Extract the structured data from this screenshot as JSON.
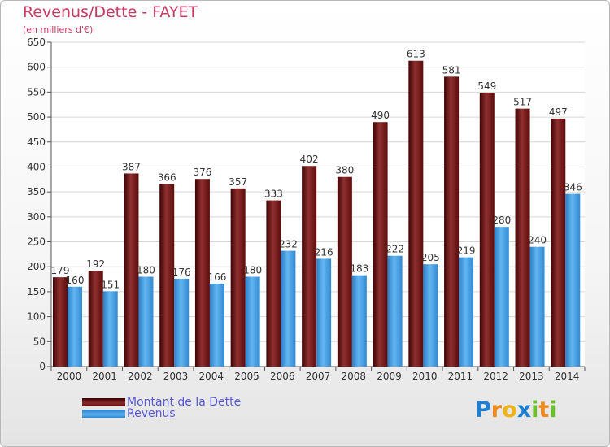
{
  "header": {
    "title": "Revenus/Dette - FAYET",
    "subtitle": "(en milliers d'€)"
  },
  "legend": {
    "debt_label": "Montant de la Dette",
    "revenue_label": "Revenus"
  },
  "logo": {
    "text": "Proxiti",
    "letters": [
      {
        "ch": "P",
        "color": "#1f7fd1"
      },
      {
        "ch": "r",
        "color": "#f08a1c"
      },
      {
        "ch": "o",
        "color": "#f0b21c"
      },
      {
        "ch": "x",
        "color": "#1f7fd1"
      },
      {
        "ch": "i",
        "color": "#6cbf2a"
      },
      {
        "ch": "t",
        "color": "#f08a1c"
      },
      {
        "ch": "i",
        "color": "#6cbf2a"
      }
    ]
  },
  "colors": {
    "title": "#c8385f",
    "debt_bar": "#7a1c1c",
    "revenue_bar": "#3d9be0",
    "legend_text": "#5858e0"
  },
  "chart_data": {
    "type": "bar",
    "title": "Revenus/Dette - FAYET",
    "subtitle": "(en milliers d'€)",
    "categories": [
      "2000",
      "2001",
      "2002",
      "2003",
      "2004",
      "2005",
      "2006",
      "2007",
      "2008",
      "2009",
      "2010",
      "2011",
      "2012",
      "2013",
      "2014"
    ],
    "series": [
      {
        "name": "Montant de la Dette",
        "values": [
          179,
          192,
          387,
          366,
          376,
          357,
          333,
          402,
          380,
          490,
          613,
          581,
          549,
          517,
          497
        ]
      },
      {
        "name": "Revenus",
        "values": [
          160,
          151,
          180,
          176,
          166,
          180,
          232,
          216,
          183,
          222,
          205,
          219,
          280,
          240,
          346
        ]
      }
    ],
    "ylim": [
      0,
      650
    ],
    "yticks": [
      0,
      50,
      100,
      150,
      200,
      250,
      300,
      350,
      400,
      450,
      500,
      550,
      600,
      650
    ],
    "grid": true,
    "legend_position": "bottom-left"
  }
}
